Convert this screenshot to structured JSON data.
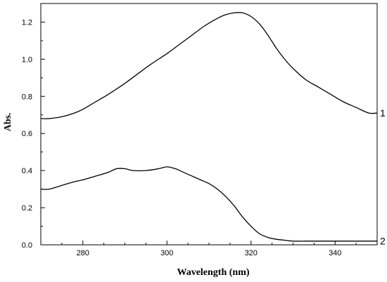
{
  "chart_data": {
    "type": "line",
    "xlabel": "Wavelength (nm)",
    "ylabel": "Abs.",
    "xlim": [
      270,
      350
    ],
    "ylim": [
      0.0,
      1.3
    ],
    "x_ticks": [
      280,
      300,
      320,
      340
    ],
    "x_tick_labels": [
      "280",
      "300",
      "320",
      "340"
    ],
    "y_ticks": [
      0.0,
      0.2,
      0.4,
      0.6,
      0.8,
      1.0,
      1.2
    ],
    "y_tick_labels": [
      "0.0",
      "0.2",
      "0.4",
      "0.6",
      "0.8",
      "1.0",
      "1.2"
    ],
    "x_minor_step": 5,
    "y_minor_step": 0.1,
    "grid": false,
    "line_color": "#000000",
    "series": [
      {
        "name": "1",
        "x": [
          270,
          272,
          275,
          278,
          280,
          283,
          286,
          290,
          293,
          296,
          300,
          303,
          306,
          309,
          312,
          314,
          316,
          318,
          320,
          322,
          324,
          326,
          328,
          330,
          333,
          336,
          339,
          342,
          345,
          348,
          350
        ],
        "y": [
          0.68,
          0.68,
          0.69,
          0.71,
          0.73,
          0.77,
          0.81,
          0.87,
          0.92,
          0.97,
          1.03,
          1.08,
          1.13,
          1.18,
          1.22,
          1.24,
          1.25,
          1.25,
          1.23,
          1.19,
          1.13,
          1.06,
          1.0,
          0.95,
          0.89,
          0.85,
          0.81,
          0.77,
          0.74,
          0.71,
          0.71
        ]
      },
      {
        "name": "2",
        "x": [
          270,
          272,
          275,
          278,
          280,
          283,
          286,
          288,
          290,
          292,
          295,
          298,
          300,
          302,
          304,
          306,
          308,
          310,
          312,
          314,
          316,
          318,
          320,
          322,
          324,
          326,
          328,
          330,
          333,
          336,
          340,
          345,
          350
        ],
        "y": [
          0.3,
          0.3,
          0.32,
          0.34,
          0.35,
          0.37,
          0.39,
          0.41,
          0.41,
          0.4,
          0.4,
          0.41,
          0.42,
          0.41,
          0.39,
          0.37,
          0.35,
          0.33,
          0.3,
          0.26,
          0.21,
          0.15,
          0.1,
          0.06,
          0.04,
          0.03,
          0.025,
          0.02,
          0.02,
          0.02,
          0.02,
          0.02,
          0.02
        ]
      }
    ]
  }
}
